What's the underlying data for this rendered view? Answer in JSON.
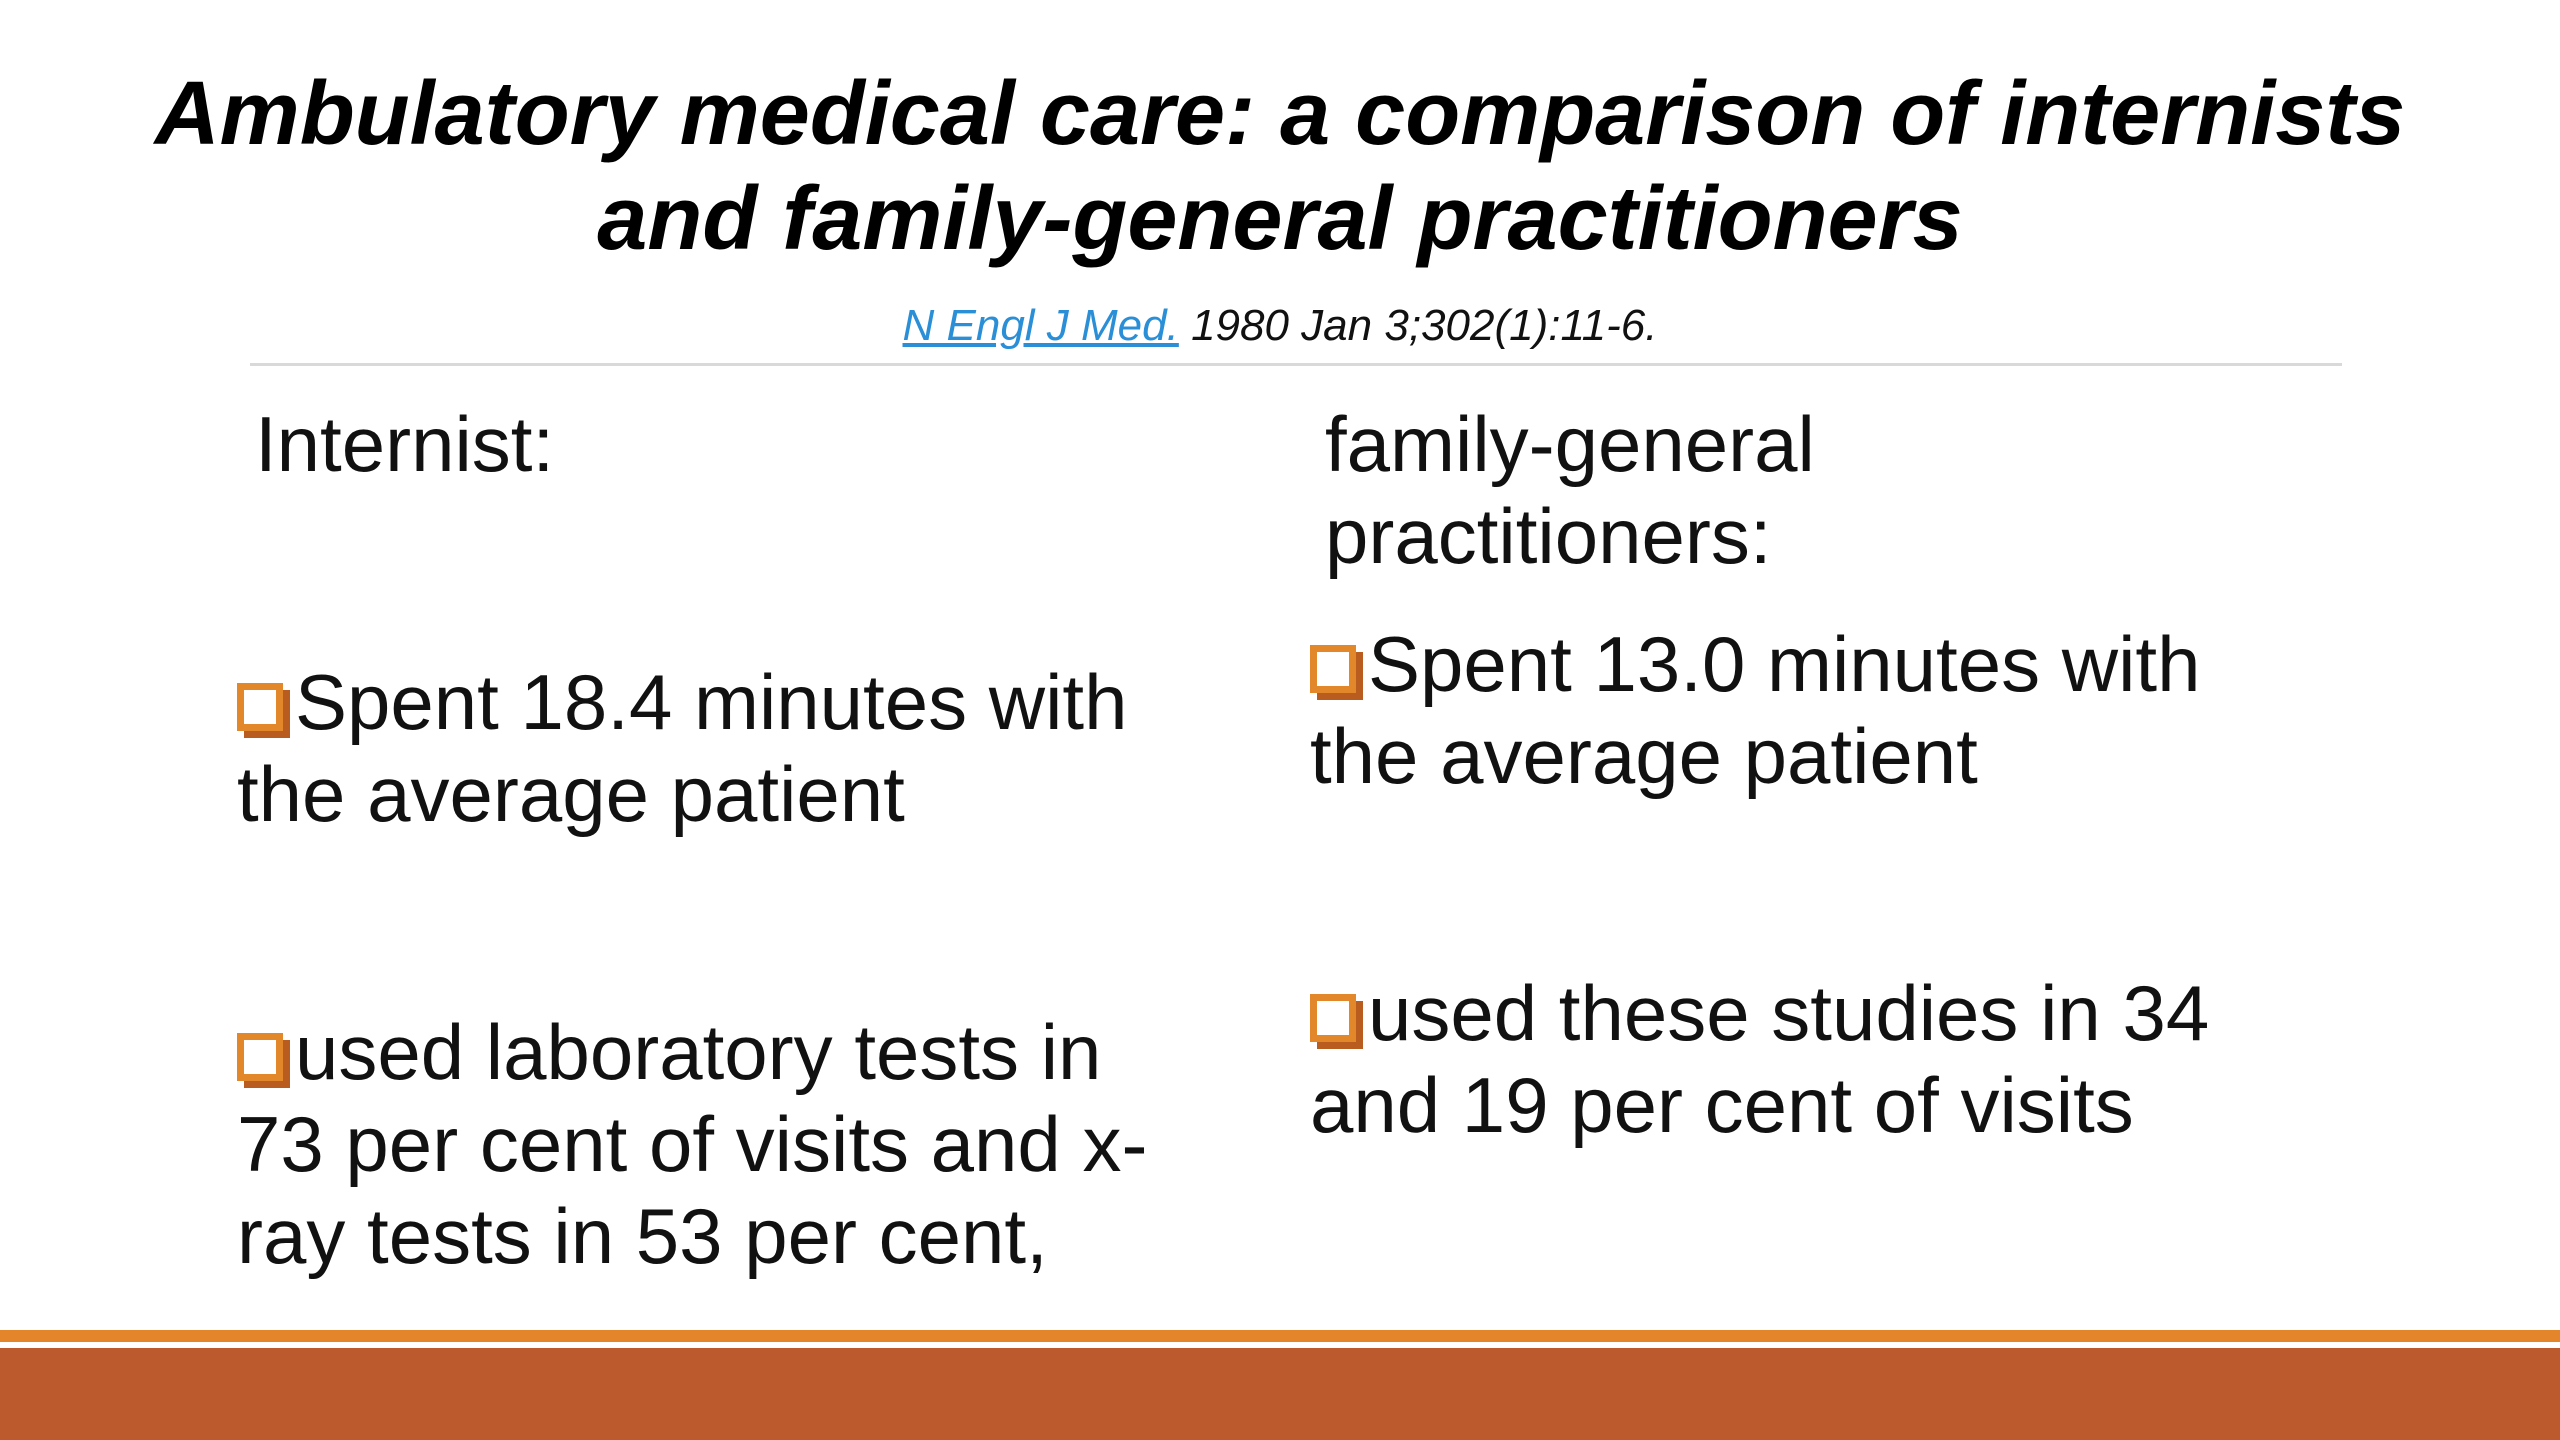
{
  "title": {
    "line1": "Ambulatory medical care: a comparison of internists",
    "line2": "and family-general practitioners"
  },
  "citation": {
    "journal_link": "N Engl J Med.",
    "details": " 1980 Jan 3;302(1):11-6."
  },
  "left_column": {
    "heading": "Internist:",
    "bullets": [
      {
        "lines": [
          "Spent 18.4 minutes with",
          "the average patient"
        ]
      },
      {
        "lines": [
          "used laboratory tests in",
          "73 per cent of visits and x-",
          "ray tests in 53 per cent,"
        ]
      }
    ]
  },
  "right_column": {
    "heading": "family-general",
    "heading_line2": "practitioners:",
    "bullets": [
      {
        "lines": [
          "Spent 13.0 minutes with",
          "the average patient"
        ]
      },
      {
        "lines": [
          "used these studies in 34",
          "and 19 per cent of visits"
        ]
      }
    ]
  },
  "colors": {
    "link": "#2a8fd6",
    "bullet_orange": "#e3882a",
    "footer_accent": "#e5852b",
    "footer_band": "#bc5a2d"
  },
  "icons": {
    "bullet": "hollow-square-bullet-icon"
  }
}
